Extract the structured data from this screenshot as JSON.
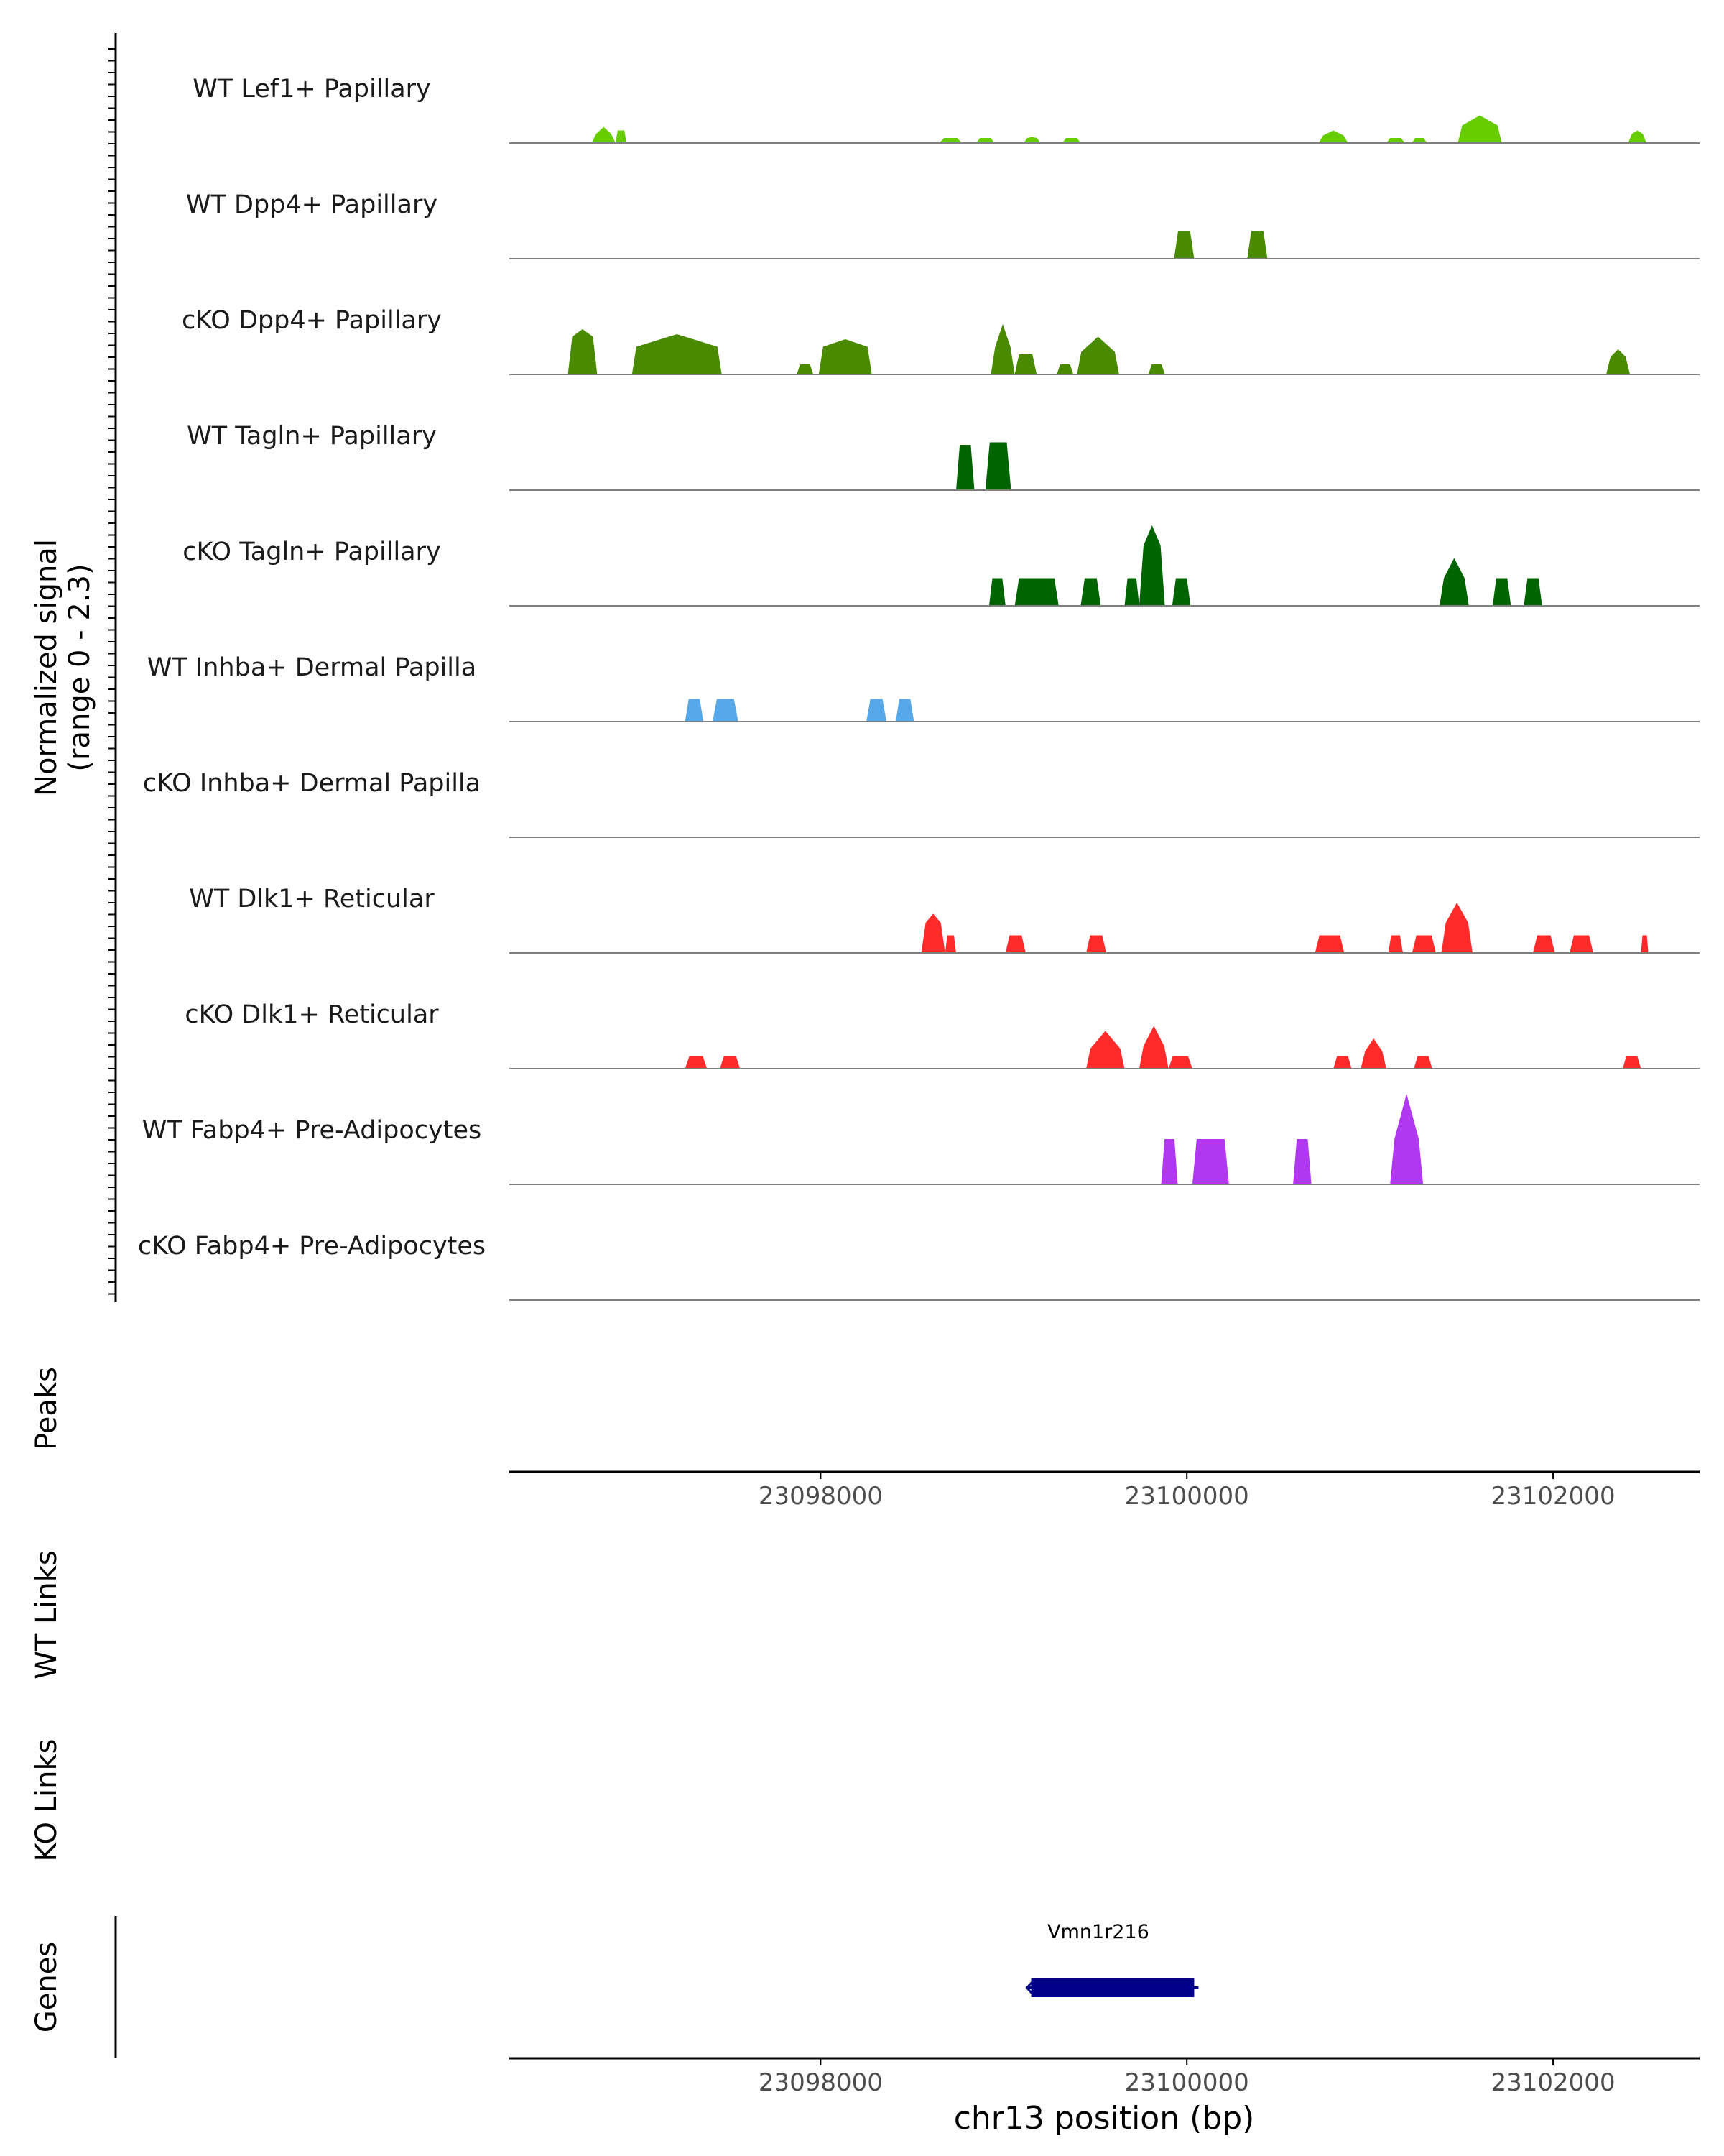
{
  "chart_data": {
    "type": "area",
    "title": "",
    "chromosome": "chr13",
    "xlabel": "chr13 position (bp)",
    "xlim": [
      23096300,
      23102800
    ],
    "xticks": [
      23098000,
      23100000,
      23102000
    ],
    "xtick_labels": [
      "23098000",
      "23100000",
      "23102000"
    ],
    "ylabel_line1": "Normalized signal",
    "ylabel_line2": "(range 0 - 2.3)",
    "ylim": [
      0,
      2.3
    ],
    "tracks": [
      {
        "name": "WT Lef1+ Papillary",
        "color": "#66cc00",
        "peaks": [
          [
            23096750,
            23096880,
            0.18,
            0.32
          ],
          [
            23096880,
            23096940,
            0.25,
            0.25
          ],
          [
            23098650,
            23098770,
            0.1,
            0.1
          ],
          [
            23098850,
            23098950,
            0.1,
            0.1
          ],
          [
            23099110,
            23099200,
            0.1,
            0.12
          ],
          [
            23099320,
            23099420,
            0.1,
            0.1
          ],
          [
            23100720,
            23100880,
            0.15,
            0.25
          ],
          [
            23101090,
            23101190,
            0.1,
            0.1
          ],
          [
            23101230,
            23101310,
            0.1,
            0.1
          ],
          [
            23101480,
            23101720,
            0.35,
            0.55
          ],
          [
            23102410,
            23102510,
            0.18,
            0.25
          ]
        ]
      },
      {
        "name": "WT Dpp4+ Papillary",
        "color": "#4a8a00",
        "peaks": [
          [
            23099930,
            23100040,
            0.55,
            0.55
          ],
          [
            23100330,
            23100440,
            0.55,
            0.55
          ]
        ]
      },
      {
        "name": "cKO Dpp4+ Papillary",
        "color": "#4a8a00",
        "peaks": [
          [
            23096620,
            23096780,
            0.75,
            0.9
          ],
          [
            23096970,
            23097460,
            0.55,
            0.8
          ],
          [
            23097870,
            23097960,
            0.2,
            0.2
          ],
          [
            23097990,
            23098280,
            0.55,
            0.7
          ],
          [
            23098930,
            23099060,
            0.55,
            1.0
          ],
          [
            23099060,
            23099180,
            0.4,
            0.4
          ],
          [
            23099290,
            23099380,
            0.2,
            0.2
          ],
          [
            23099400,
            23099630,
            0.45,
            0.75
          ],
          [
            23099790,
            23099880,
            0.2,
            0.2
          ],
          [
            23102290,
            23102420,
            0.35,
            0.5
          ]
        ]
      },
      {
        "name": "WT Tagln+ Papillary",
        "color": "#006400",
        "peaks": [
          [
            23098740,
            23098840,
            0.9,
            0.9
          ],
          [
            23098900,
            23099040,
            0.95,
            0.95
          ]
        ]
      },
      {
        "name": "cKO Tagln+ Papillary",
        "color": "#006400",
        "peaks": [
          [
            23098920,
            23099010,
            0.55,
            0.55
          ],
          [
            23099060,
            23099300,
            0.55,
            0.55
          ],
          [
            23099420,
            23099530,
            0.55,
            0.55
          ],
          [
            23099660,
            23099740,
            0.55,
            0.55
          ],
          [
            23099740,
            23099880,
            1.2,
            1.6
          ],
          [
            23099920,
            23100020,
            0.55,
            0.55
          ],
          [
            23101380,
            23101540,
            0.55,
            0.95
          ],
          [
            23101670,
            23101770,
            0.55,
            0.55
          ],
          [
            23101840,
            23101940,
            0.55,
            0.55
          ]
        ]
      },
      {
        "name": "WT Inhba+ Dermal Papilla",
        "color": "#56a8e8",
        "peaks": [
          [
            23097260,
            23097360,
            0.45,
            0.45
          ],
          [
            23097410,
            23097550,
            0.45,
            0.45
          ],
          [
            23098250,
            23098360,
            0.45,
            0.45
          ],
          [
            23098410,
            23098510,
            0.45,
            0.45
          ]
        ]
      },
      {
        "name": "cKO Inhba+ Dermal Papilla",
        "color": "#56a8e8",
        "peaks": []
      },
      {
        "name": "WT Dlk1+ Reticular",
        "color": "#ff2a2a",
        "peaks": [
          [
            23098550,
            23098680,
            0.6,
            0.78
          ],
          [
            23098680,
            23098740,
            0.35,
            0.35
          ],
          [
            23099010,
            23099120,
            0.35,
            0.35
          ],
          [
            23099450,
            23099560,
            0.35,
            0.35
          ],
          [
            23100700,
            23100860,
            0.35,
            0.35
          ],
          [
            23101100,
            23101180,
            0.35,
            0.35
          ],
          [
            23101230,
            23101360,
            0.35,
            0.35
          ],
          [
            23101390,
            23101560,
            0.6,
            1.0
          ],
          [
            23101890,
            23102010,
            0.35,
            0.35
          ],
          [
            23102090,
            23102220,
            0.35,
            0.35
          ],
          [
            23102480,
            23102520,
            0.35,
            0.35
          ]
        ]
      },
      {
        "name": "cKO Dlk1+ Reticular",
        "color": "#ff2a2a",
        "peaks": [
          [
            23097260,
            23097380,
            0.25,
            0.25
          ],
          [
            23097450,
            23097560,
            0.25,
            0.25
          ],
          [
            23099450,
            23099660,
            0.4,
            0.75
          ],
          [
            23099740,
            23099900,
            0.45,
            0.85
          ],
          [
            23099900,
            23100030,
            0.25,
            0.25
          ],
          [
            23100800,
            23100900,
            0.25,
            0.25
          ],
          [
            23100950,
            23101090,
            0.35,
            0.6
          ],
          [
            23101240,
            23101340,
            0.25,
            0.25
          ],
          [
            23102380,
            23102480,
            0.25,
            0.25
          ]
        ]
      },
      {
        "name": "WT Fabp4+ Pre-Adipocytes",
        "color": "#b038f0",
        "peaks": [
          [
            23099860,
            23099950,
            0.9,
            0.9
          ],
          [
            23100030,
            23100230,
            0.9,
            0.9
          ],
          [
            23100580,
            23100680,
            0.9,
            0.9
          ],
          [
            23101110,
            23101290,
            0.9,
            1.8
          ]
        ]
      },
      {
        "name": "cKO Fabp4+ Pre-Adipocytes",
        "color": "#b038f0",
        "peaks": []
      }
    ],
    "panels": [
      "Peaks",
      "WT Links",
      "KO Links",
      "Genes"
    ],
    "genes": [
      {
        "name": "Vmn1r216",
        "start": 23099150,
        "end": 23100040,
        "strand": "-",
        "color": "#00008b"
      }
    ]
  }
}
